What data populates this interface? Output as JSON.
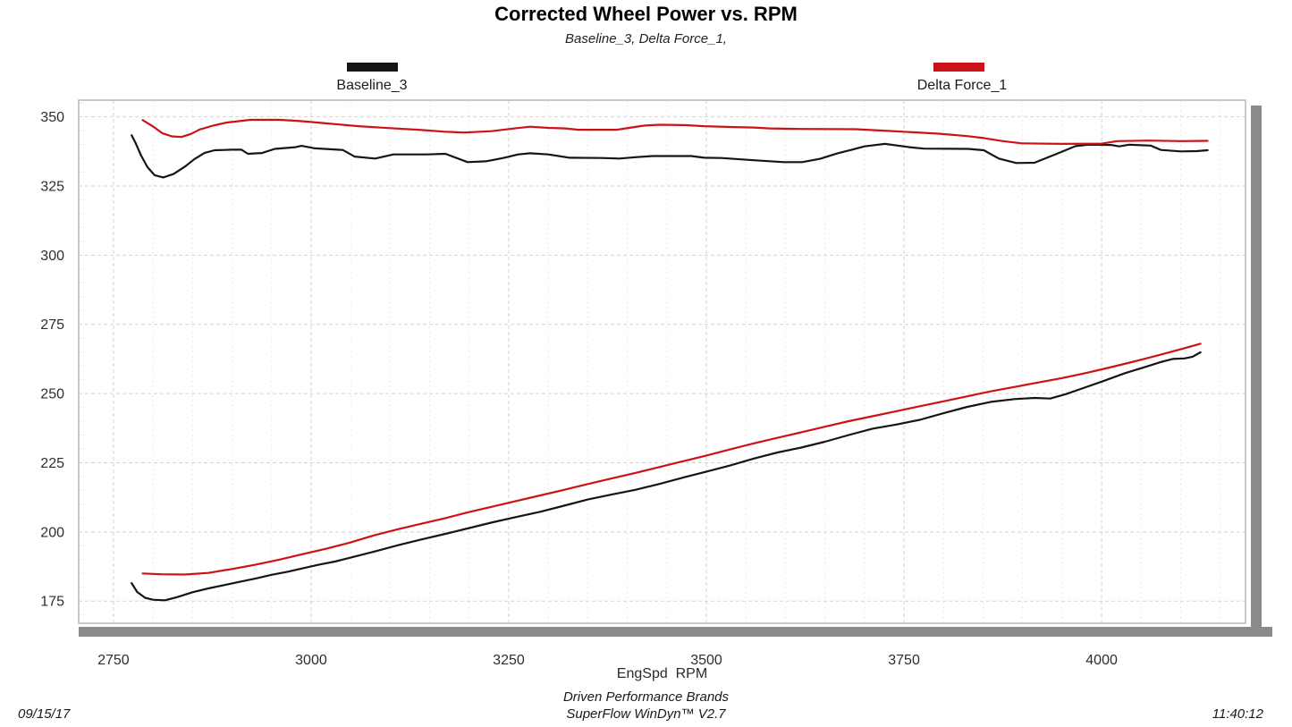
{
  "header": {
    "title": "Corrected Wheel Power vs. RPM",
    "subtitle": "Baseline_3, Delta Force_1,"
  },
  "legend": {
    "items": [
      {
        "label": "Baseline_3",
        "color": "#151515"
      },
      {
        "label": "Delta Force_1",
        "color": "#cc1216"
      }
    ]
  },
  "axis": {
    "xlabel": "EngSpd  RPM"
  },
  "footer": {
    "date": "09/15/17",
    "brand_line1": "Driven Performance Brands",
    "brand_line2": "SuperFlow WinDyn™ V2.7",
    "time": "11:40:12"
  },
  "chart_data": {
    "type": "line",
    "title": "Corrected Wheel Power vs. RPM",
    "subtitle": "Baseline_3, Delta Force_1,",
    "xlabel": "EngSpd  RPM",
    "ylabel": "",
    "grid": true,
    "legend_position": "top",
    "xlim": [
      2706,
      4182
    ],
    "ylim": [
      167,
      356
    ],
    "x_major_ticks": [
      2750,
      3000,
      3250,
      3500,
      3750,
      4000
    ],
    "x_minor_step": 50,
    "y_major_ticks": [
      175,
      200,
      225,
      250,
      275,
      300,
      325,
      350
    ],
    "y_minor_step": 5,
    "colors": {
      "grid_major": "#d2d2d2",
      "grid_minor": "#e4e4e4",
      "border": "#b8b8b8",
      "frame_shadow": "#8a8a8a"
    },
    "series": [
      {
        "name": "Baseline_3 (upper trace)",
        "color": "#151515",
        "points": [
          [
            2773,
            343.3
          ],
          [
            2778,
            340.5
          ],
          [
            2785,
            336.0
          ],
          [
            2793,
            331.8
          ],
          [
            2802,
            328.9
          ],
          [
            2813,
            328.1
          ],
          [
            2826,
            329.3
          ],
          [
            2840,
            331.9
          ],
          [
            2852,
            334.6
          ],
          [
            2865,
            336.9
          ],
          [
            2878,
            337.9
          ],
          [
            2900,
            338.1
          ],
          [
            2912,
            338.1
          ],
          [
            2920,
            336.6
          ],
          [
            2938,
            336.9
          ],
          [
            2954,
            338.4
          ],
          [
            2980,
            339.0
          ],
          [
            2988,
            339.5
          ],
          [
            3005,
            338.6
          ],
          [
            3040,
            338.0
          ],
          [
            3055,
            335.6
          ],
          [
            3081,
            334.9
          ],
          [
            3104,
            336.4
          ],
          [
            3146,
            336.4
          ],
          [
            3170,
            336.6
          ],
          [
            3198,
            333.6
          ],
          [
            3221,
            333.9
          ],
          [
            3243,
            335.1
          ],
          [
            3262,
            336.4
          ],
          [
            3277,
            336.8
          ],
          [
            3300,
            336.4
          ],
          [
            3327,
            335.2
          ],
          [
            3368,
            335.1
          ],
          [
            3390,
            334.9
          ],
          [
            3410,
            335.4
          ],
          [
            3432,
            335.8
          ],
          [
            3481,
            335.8
          ],
          [
            3497,
            335.2
          ],
          [
            3519,
            335.1
          ],
          [
            3560,
            334.3
          ],
          [
            3598,
            333.6
          ],
          [
            3621,
            333.6
          ],
          [
            3644,
            334.8
          ],
          [
            3666,
            336.8
          ],
          [
            3684,
            338.1
          ],
          [
            3700,
            339.3
          ],
          [
            3726,
            340.2
          ],
          [
            3757,
            339.0
          ],
          [
            3775,
            338.5
          ],
          [
            3831,
            338.4
          ],
          [
            3851,
            337.9
          ],
          [
            3870,
            334.9
          ],
          [
            3892,
            333.3
          ],
          [
            3915,
            333.4
          ],
          [
            3945,
            336.8
          ],
          [
            3967,
            339.4
          ],
          [
            3983,
            339.9
          ],
          [
            4012,
            339.8
          ],
          [
            4022,
            339.3
          ],
          [
            4035,
            339.9
          ],
          [
            4062,
            339.6
          ],
          [
            4075,
            338.0
          ],
          [
            4100,
            337.5
          ],
          [
            4120,
            337.6
          ],
          [
            4134,
            337.9
          ]
        ]
      },
      {
        "name": "Delta Force_1 (upper trace)",
        "color": "#cc1216",
        "points": [
          [
            2787,
            348.8
          ],
          [
            2800,
            346.5
          ],
          [
            2812,
            344.0
          ],
          [
            2824,
            342.9
          ],
          [
            2836,
            342.7
          ],
          [
            2848,
            343.8
          ],
          [
            2859,
            345.4
          ],
          [
            2876,
            346.8
          ],
          [
            2893,
            347.9
          ],
          [
            2923,
            348.9
          ],
          [
            2960,
            348.9
          ],
          [
            2988,
            348.4
          ],
          [
            3020,
            347.6
          ],
          [
            3060,
            346.6
          ],
          [
            3100,
            345.9
          ],
          [
            3140,
            345.2
          ],
          [
            3169,
            344.6
          ],
          [
            3194,
            344.3
          ],
          [
            3228,
            344.8
          ],
          [
            3260,
            345.9
          ],
          [
            3277,
            346.4
          ],
          [
            3300,
            346.0
          ],
          [
            3322,
            345.8
          ],
          [
            3338,
            345.3
          ],
          [
            3387,
            345.3
          ],
          [
            3402,
            346.0
          ],
          [
            3421,
            346.8
          ],
          [
            3440,
            347.1
          ],
          [
            3472,
            347.0
          ],
          [
            3497,
            346.6
          ],
          [
            3530,
            346.3
          ],
          [
            3560,
            346.1
          ],
          [
            3580,
            345.8
          ],
          [
            3620,
            345.6
          ],
          [
            3689,
            345.5
          ],
          [
            3730,
            344.9
          ],
          [
            3794,
            343.9
          ],
          [
            3830,
            343.0
          ],
          [
            3851,
            342.3
          ],
          [
            3875,
            341.2
          ],
          [
            3899,
            340.4
          ],
          [
            3950,
            340.2
          ],
          [
            4000,
            340.3
          ],
          [
            4020,
            341.2
          ],
          [
            4060,
            341.4
          ],
          [
            4100,
            341.2
          ],
          [
            4134,
            341.3
          ]
        ]
      },
      {
        "name": "Baseline_3 (lower trace)",
        "color": "#151515",
        "points": [
          [
            2773,
            181.5
          ],
          [
            2780,
            178.3
          ],
          [
            2790,
            176.2
          ],
          [
            2800,
            175.5
          ],
          [
            2815,
            175.3
          ],
          [
            2830,
            176.4
          ],
          [
            2850,
            178.2
          ],
          [
            2870,
            179.6
          ],
          [
            2890,
            180.8
          ],
          [
            2910,
            182.0
          ],
          [
            2930,
            183.2
          ],
          [
            2950,
            184.5
          ],
          [
            2970,
            185.6
          ],
          [
            2990,
            186.9
          ],
          [
            3010,
            188.2
          ],
          [
            3030,
            189.3
          ],
          [
            3050,
            190.7
          ],
          [
            3080,
            192.9
          ],
          [
            3110,
            195.2
          ],
          [
            3140,
            197.3
          ],
          [
            3170,
            199.3
          ],
          [
            3200,
            201.4
          ],
          [
            3230,
            203.5
          ],
          [
            3260,
            205.4
          ],
          [
            3290,
            207.3
          ],
          [
            3320,
            209.5
          ],
          [
            3350,
            211.7
          ],
          [
            3380,
            213.5
          ],
          [
            3410,
            215.2
          ],
          [
            3440,
            217.3
          ],
          [
            3470,
            219.6
          ],
          [
            3500,
            221.8
          ],
          [
            3530,
            224.0
          ],
          [
            3560,
            226.5
          ],
          [
            3590,
            228.7
          ],
          [
            3620,
            230.5
          ],
          [
            3650,
            232.6
          ],
          [
            3680,
            235.0
          ],
          [
            3710,
            237.3
          ],
          [
            3740,
            238.8
          ],
          [
            3770,
            240.5
          ],
          [
            3800,
            242.9
          ],
          [
            3830,
            245.2
          ],
          [
            3860,
            247.0
          ],
          [
            3890,
            248.0
          ],
          [
            3915,
            248.4
          ],
          [
            3935,
            248.2
          ],
          [
            3955,
            249.8
          ],
          [
            3980,
            252.3
          ],
          [
            4000,
            254.3
          ],
          [
            4030,
            257.4
          ],
          [
            4055,
            259.6
          ],
          [
            4075,
            261.4
          ],
          [
            4090,
            262.5
          ],
          [
            4105,
            262.7
          ],
          [
            4115,
            263.3
          ],
          [
            4125,
            264.9
          ]
        ]
      },
      {
        "name": "Delta Force_1 (lower trace)",
        "color": "#cc1216",
        "points": [
          [
            2787,
            185.0
          ],
          [
            2810,
            184.7
          ],
          [
            2840,
            184.6
          ],
          [
            2870,
            185.2
          ],
          [
            2900,
            186.6
          ],
          [
            2930,
            188.2
          ],
          [
            2960,
            190.0
          ],
          [
            2990,
            192.0
          ],
          [
            3020,
            194.0
          ],
          [
            3050,
            196.2
          ],
          [
            3080,
            198.8
          ],
          [
            3110,
            201.0
          ],
          [
            3140,
            203.0
          ],
          [
            3170,
            205.0
          ],
          [
            3200,
            207.2
          ],
          [
            3230,
            209.2
          ],
          [
            3260,
            211.2
          ],
          [
            3290,
            213.2
          ],
          [
            3320,
            215.2
          ],
          [
            3350,
            217.3
          ],
          [
            3380,
            219.3
          ],
          [
            3410,
            221.3
          ],
          [
            3440,
            223.4
          ],
          [
            3470,
            225.5
          ],
          [
            3500,
            227.6
          ],
          [
            3530,
            229.8
          ],
          [
            3560,
            232.0
          ],
          [
            3590,
            234.0
          ],
          [
            3620,
            236.0
          ],
          [
            3650,
            238.0
          ],
          [
            3680,
            240.0
          ],
          [
            3710,
            241.8
          ],
          [
            3740,
            243.6
          ],
          [
            3770,
            245.4
          ],
          [
            3800,
            247.2
          ],
          [
            3830,
            249.0
          ],
          [
            3860,
            250.8
          ],
          [
            3890,
            252.4
          ],
          [
            3920,
            254.0
          ],
          [
            3950,
            255.6
          ],
          [
            3980,
            257.4
          ],
          [
            4010,
            259.4
          ],
          [
            4040,
            261.5
          ],
          [
            4070,
            263.7
          ],
          [
            4100,
            266.0
          ],
          [
            4125,
            268.0
          ]
        ]
      }
    ]
  }
}
